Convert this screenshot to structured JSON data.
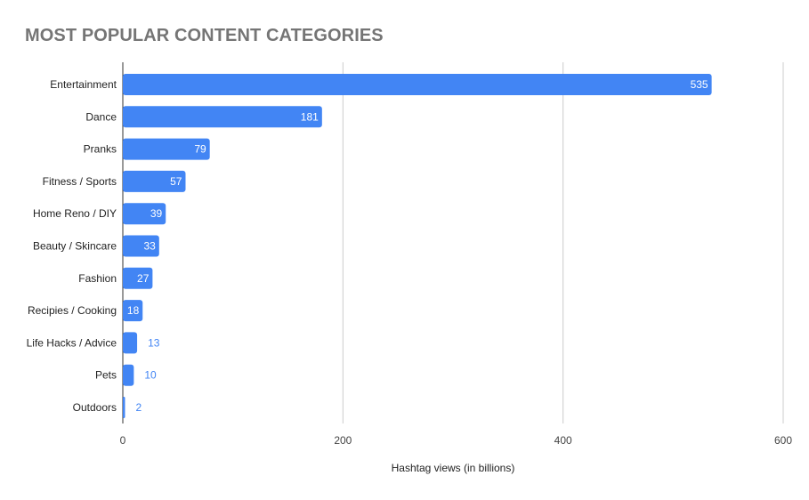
{
  "chart_data": {
    "type": "bar",
    "orientation": "horizontal",
    "title": "MOST POPULAR CONTENT CATEGORIES",
    "xlabel": "Hashtag views (in billions)",
    "ylabel": "",
    "xlim": [
      0,
      600
    ],
    "xticks": [
      "0",
      "200",
      "400",
      "600"
    ],
    "grid": true,
    "bar_color": "#4285f4",
    "categories": [
      "Entertainment",
      "Dance",
      "Pranks",
      "Fitness / Sports",
      "Home Reno / DIY",
      "Beauty / Skincare",
      "Fashion",
      "Recipies / Cooking",
      "Life Hacks / Advice",
      "Pets",
      "Outdoors"
    ],
    "values": [
      535,
      181,
      79,
      57,
      39,
      33,
      27,
      18,
      13,
      10,
      2
    ]
  }
}
